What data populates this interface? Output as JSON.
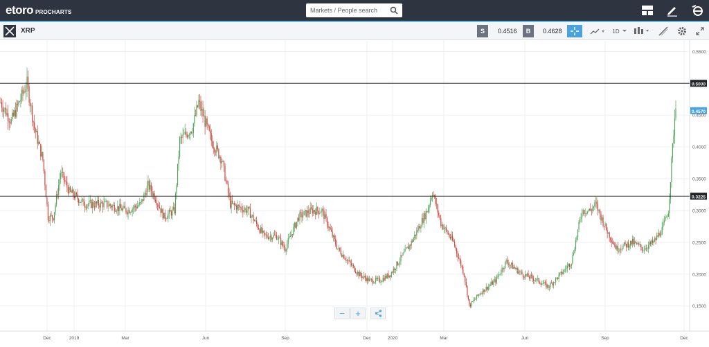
{
  "topbar": {
    "logo_text": "etoro",
    "product_text": "PROCHARTS",
    "search_placeholder": "Markets / People search",
    "icons": [
      "layout-icon",
      "pencil-icon",
      "etoro-e-icon"
    ]
  },
  "toolbar": {
    "symbol": "XRP",
    "sell_label": "S",
    "sell_price": "0.4516",
    "buy_label": "B",
    "buy_price": "0.4628",
    "timeframe": "1D",
    "icons": [
      "crosshair-icon",
      "chart-type-icon",
      "candles-icon",
      "draw-tools-icon",
      "settings-icon",
      "fullscreen-icon"
    ]
  },
  "zoom_controls": {
    "minus": "−",
    "plus": "+",
    "share_icon": "share-icon"
  },
  "colors": {
    "up": "#55a35a",
    "down": "#c9463d",
    "topbar": "#2e3440",
    "accent": "#4aa3df"
  },
  "chart_data": {
    "type": "candlestick",
    "series": [
      {
        "name": "XRP",
        "x_start": "2018-11-01",
        "x_end": "2020-11-28",
        "points_per_month": "daily"
      }
    ],
    "y_ticks": [
      "0.5500",
      "0.5000",
      "0.4500",
      "0.4000",
      "0.3500",
      "0.3000",
      "0.2500",
      "0.2000",
      "0.1500"
    ],
    "x_ticks": [
      "Dec",
      "2019",
      "Mar",
      "Jun",
      "Sep",
      "Dec",
      "2020",
      "Mar",
      "Jun",
      "Sep",
      "Dec"
    ],
    "ylim": [
      0.1105,
      0.5678
    ],
    "horizontal_lines": [
      {
        "value": 0.5,
        "label": "0.5000"
      },
      {
        "value": 0.3225,
        "label": "0.3225"
      }
    ],
    "last_price": {
      "value": 0.457,
      "label": "0.4570"
    },
    "anchors": [
      [
        0,
        0.47
      ],
      [
        10,
        0.44
      ],
      [
        25,
        0.5
      ],
      [
        32,
        0.43
      ],
      [
        40,
        0.38
      ],
      [
        45,
        0.29
      ],
      [
        50,
        0.29
      ],
      [
        57,
        0.36
      ],
      [
        65,
        0.33
      ],
      [
        80,
        0.31
      ],
      [
        100,
        0.31
      ],
      [
        120,
        0.3
      ],
      [
        133,
        0.31
      ],
      [
        140,
        0.34
      ],
      [
        147,
        0.32
      ],
      [
        155,
        0.29
      ],
      [
        165,
        0.3
      ],
      [
        170,
        0.41
      ],
      [
        182,
        0.43
      ],
      [
        188,
        0.47
      ],
      [
        200,
        0.41
      ],
      [
        210,
        0.38
      ],
      [
        218,
        0.31
      ],
      [
        235,
        0.3
      ],
      [
        250,
        0.26
      ],
      [
        262,
        0.26
      ],
      [
        270,
        0.24
      ],
      [
        283,
        0.29
      ],
      [
        295,
        0.3
      ],
      [
        305,
        0.3
      ],
      [
        320,
        0.24
      ],
      [
        340,
        0.2
      ],
      [
        350,
        0.19
      ],
      [
        360,
        0.19
      ],
      [
        370,
        0.2
      ],
      [
        390,
        0.25
      ],
      [
        405,
        0.3
      ],
      [
        410,
        0.33
      ],
      [
        418,
        0.28
      ],
      [
        430,
        0.25
      ],
      [
        440,
        0.2
      ],
      [
        445,
        0.15
      ],
      [
        455,
        0.17
      ],
      [
        470,
        0.19
      ],
      [
        480,
        0.22
      ],
      [
        495,
        0.2
      ],
      [
        510,
        0.19
      ],
      [
        520,
        0.18
      ],
      [
        532,
        0.2
      ],
      [
        542,
        0.22
      ],
      [
        552,
        0.3
      ],
      [
        560,
        0.3
      ],
      [
        565,
        0.31
      ],
      [
        575,
        0.27
      ],
      [
        585,
        0.24
      ],
      [
        600,
        0.25
      ],
      [
        610,
        0.24
      ],
      [
        620,
        0.25
      ],
      [
        628,
        0.27
      ],
      [
        634,
        0.3
      ],
      [
        638,
        0.4
      ],
      [
        641,
        0.47
      ]
    ]
  }
}
